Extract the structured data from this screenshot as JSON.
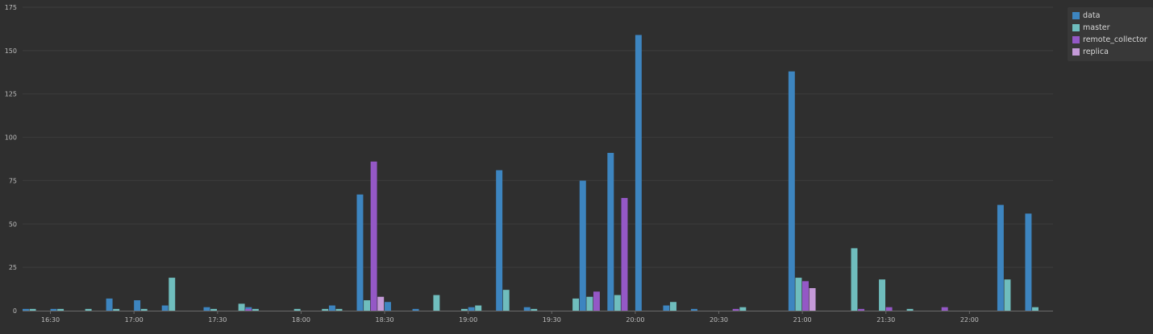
{
  "chart_data": {
    "type": "bar",
    "ylim": [
      0,
      175
    ],
    "yticks": [
      0,
      25,
      50,
      75,
      100,
      125,
      150,
      175
    ],
    "xlim": [
      "16:20",
      "22:30"
    ],
    "xticks": [
      "16:30",
      "17:00",
      "17:30",
      "18:00",
      "18:30",
      "19:00",
      "19:30",
      "20:00",
      "20:30",
      "21:00",
      "21:30",
      "22:00"
    ],
    "bin_minutes": 5,
    "grid": true,
    "legend_position": "top-right",
    "series": [
      {
        "name": "data",
        "color": "#3d85c0",
        "points": [
          [
            "16:20",
            1
          ],
          [
            "16:30",
            1
          ],
          [
            "16:50",
            7
          ],
          [
            "17:00",
            6
          ],
          [
            "17:10",
            3
          ],
          [
            "17:25",
            2
          ],
          [
            "17:40",
            2
          ],
          [
            "18:10",
            3
          ],
          [
            "18:20",
            67
          ],
          [
            "18:30",
            5
          ],
          [
            "18:40",
            1
          ],
          [
            "19:00",
            2
          ],
          [
            "19:10",
            81
          ],
          [
            "19:20",
            2
          ],
          [
            "19:40",
            75
          ],
          [
            "19:50",
            91
          ],
          [
            "20:00",
            159
          ],
          [
            "20:10",
            3
          ],
          [
            "20:20",
            1
          ],
          [
            "20:55",
            138
          ],
          [
            "22:10",
            61
          ],
          [
            "22:20",
            56
          ]
        ]
      },
      {
        "name": "master",
        "color": "#6fbdbd",
        "points": [
          [
            "16:20",
            1
          ],
          [
            "16:30",
            1
          ],
          [
            "16:40",
            1
          ],
          [
            "16:50",
            1
          ],
          [
            "17:00",
            1
          ],
          [
            "17:10",
            19
          ],
          [
            "17:25",
            1
          ],
          [
            "17:35",
            4
          ],
          [
            "17:40",
            1
          ],
          [
            "17:55",
            1
          ],
          [
            "18:05",
            1
          ],
          [
            "18:10",
            1
          ],
          [
            "18:20",
            6
          ],
          [
            "18:45",
            9
          ],
          [
            "18:55",
            1
          ],
          [
            "19:00",
            3
          ],
          [
            "19:10",
            12
          ],
          [
            "19:20",
            1
          ],
          [
            "19:35",
            7
          ],
          [
            "19:40",
            8
          ],
          [
            "19:50",
            9
          ],
          [
            "20:10",
            5
          ],
          [
            "20:35",
            2
          ],
          [
            "20:55",
            19
          ],
          [
            "21:15",
            36
          ],
          [
            "21:25",
            18
          ],
          [
            "21:35",
            1
          ],
          [
            "22:10",
            18
          ],
          [
            "22:20",
            2
          ]
        ]
      },
      {
        "name": "remote_collector",
        "color": "#9458c6",
        "points": [
          [
            "17:35",
            1
          ],
          [
            "18:20",
            86
          ],
          [
            "19:40",
            11
          ],
          [
            "19:50",
            65
          ],
          [
            "20:30",
            1
          ],
          [
            "20:55",
            17
          ],
          [
            "21:15",
            1
          ],
          [
            "21:25",
            2
          ],
          [
            "21:45",
            2
          ]
        ]
      },
      {
        "name": "replica",
        "color": "#c49ad8",
        "points": [
          [
            "18:20",
            8
          ],
          [
            "20:55",
            13
          ]
        ]
      }
    ]
  }
}
